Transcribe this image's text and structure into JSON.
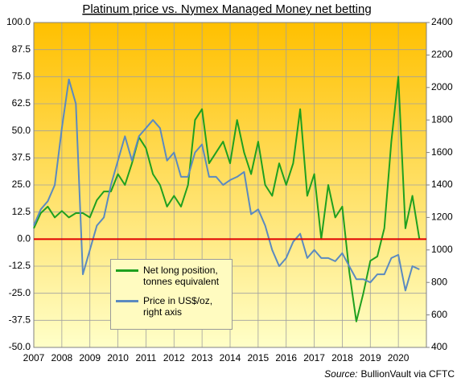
{
  "chart_data": {
    "type": "line",
    "title": "Platinum price vs. Nymex Managed Money net betting",
    "source_label": "Source:",
    "source_text": "BullionVault via CFTC",
    "x": [
      2007.0,
      2007.25,
      2007.5,
      2007.75,
      2008.0,
      2008.25,
      2008.5,
      2008.75,
      2009.0,
      2009.25,
      2009.5,
      2009.75,
      2010.0,
      2010.25,
      2010.5,
      2010.75,
      2011.0,
      2011.25,
      2011.5,
      2011.75,
      2012.0,
      2012.25,
      2012.5,
      2012.75,
      2013.0,
      2013.25,
      2013.5,
      2013.75,
      2014.0,
      2014.25,
      2014.5,
      2014.75,
      2015.0,
      2015.25,
      2015.5,
      2015.75,
      2016.0,
      2016.25,
      2016.5,
      2016.75,
      2017.0,
      2017.25,
      2017.5,
      2017.75,
      2018.0,
      2018.25,
      2018.5,
      2018.75,
      2019.0,
      2019.25,
      2019.5,
      2019.75,
      2020.0,
      2020.25,
      2020.5,
      2020.75
    ],
    "series": [
      {
        "name": "Net long position, tonnes equivalent",
        "color": "#1fa01f",
        "values": [
          5,
          12,
          15,
          10,
          13,
          10,
          12,
          12,
          10,
          18,
          22,
          22,
          30,
          25,
          35,
          47,
          42,
          30,
          25,
          15,
          20,
          15,
          25,
          55,
          60,
          35,
          40,
          45,
          35,
          55,
          40,
          30,
          45,
          25,
          20,
          35,
          25,
          35,
          60,
          20,
          30,
          0,
          25,
          10,
          15,
          -15,
          -38,
          -25,
          -10,
          -8,
          5,
          45,
          75,
          5,
          20,
          0
        ]
      },
      {
        "name": "Price in US$/oz, right axis",
        "color": "#5b8ac0",
        "axis": "y2",
        "values": [
          1150,
          1250,
          1300,
          1400,
          1750,
          2050,
          1900,
          850,
          1000,
          1150,
          1200,
          1400,
          1550,
          1700,
          1550,
          1700,
          1750,
          1800,
          1750,
          1550,
          1600,
          1450,
          1450,
          1600,
          1650,
          1450,
          1450,
          1400,
          1430,
          1450,
          1480,
          1220,
          1250,
          1150,
          1000,
          900,
          950,
          1050,
          1100,
          950,
          1000,
          950,
          950,
          930,
          980,
          900,
          820,
          820,
          800,
          850,
          850,
          950,
          970,
          750,
          900,
          880
        ]
      }
    ],
    "xlim": [
      2007,
      2021
    ],
    "xticks": [
      2007,
      2008,
      2009,
      2010,
      2011,
      2012,
      2013,
      2014,
      2015,
      2016,
      2017,
      2018,
      2019,
      2020
    ],
    "ylim": [
      -50,
      100
    ],
    "yticks": [
      {
        "value": 100,
        "label": "100.0"
      },
      {
        "value": 87.5,
        "label": "87.5"
      },
      {
        "value": 75,
        "label": "75.0"
      },
      {
        "value": 62.5,
        "label": "62.5"
      },
      {
        "value": 50,
        "label": "50.0"
      },
      {
        "value": 37.5,
        "label": "37.5"
      },
      {
        "value": 25,
        "label": "25.0"
      },
      {
        "value": 12.5,
        "label": "12.5"
      },
      {
        "value": 0,
        "label": "0.0"
      },
      {
        "value": -12.5,
        "label": "-12.5"
      },
      {
        "value": -25,
        "label": "-25.0"
      },
      {
        "value": -37.5,
        "label": "-37.5"
      },
      {
        "value": -50,
        "label": "-50.0"
      }
    ],
    "y2lim": [
      400,
      2400
    ],
    "y2ticks": [
      400,
      600,
      800,
      1000,
      1200,
      1400,
      1600,
      1800,
      2000,
      2200,
      2400
    ],
    "reference_line": {
      "y": 0,
      "color": "#e00000"
    },
    "grid": true
  }
}
